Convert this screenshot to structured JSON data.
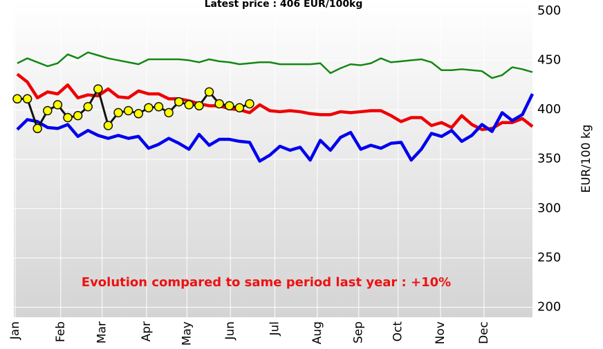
{
  "chart_data": {
    "type": "line",
    "title": "Latest price : 406 EUR/100kg",
    "annotation": "Evolution compared to same period last year : +10%",
    "y_label": "EUR/100 kg",
    "x": [
      1,
      2,
      3,
      4,
      5,
      6,
      7,
      8,
      9,
      10,
      11,
      12,
      13,
      14,
      15,
      16,
      17,
      18,
      19,
      20,
      21,
      22,
      23,
      24,
      25,
      26,
      27,
      28,
      29,
      30,
      31,
      32,
      33,
      34,
      35,
      36,
      37,
      38,
      39,
      40,
      41,
      42,
      43,
      44,
      45,
      46,
      47,
      48,
      49,
      50,
      51,
      52
    ],
    "xlim": [
      0.66,
      52
    ],
    "xticks": [
      {
        "value": 0.8,
        "label": "Jan"
      },
      {
        "value": 5.3,
        "label": "Feb"
      },
      {
        "value": 9.4,
        "label": "Mar"
      },
      {
        "value": 13.8,
        "label": "Apr"
      },
      {
        "value": 17.8,
        "label": "May"
      },
      {
        "value": 22.1,
        "label": "Jun"
      },
      {
        "value": 26.5,
        "label": "Jul"
      },
      {
        "value": 30.7,
        "label": "Aug"
      },
      {
        "value": 34.8,
        "label": "Sep"
      },
      {
        "value": 38.7,
        "label": "Oct"
      },
      {
        "value": 42.9,
        "label": "Nov"
      },
      {
        "value": 47.2,
        "label": "Dec"
      }
    ],
    "ylim": [
      190,
      511
    ],
    "yticks": [
      200,
      250,
      300,
      350,
      400,
      450,
      500
    ],
    "grid": true,
    "series": [
      {
        "color": "#118811",
        "width": 2.5,
        "markers": false,
        "values": [
          447,
          452,
          448,
          444,
          447,
          456,
          452,
          458,
          455,
          452,
          450,
          448,
          446,
          451,
          451,
          451,
          451,
          450,
          448,
          451,
          449,
          448,
          446,
          447,
          448,
          448,
          446,
          446,
          446,
          446,
          447,
          437,
          442,
          446,
          445,
          447,
          452,
          448,
          449,
          450,
          451,
          448,
          440,
          440,
          441,
          440,
          439,
          432,
          435,
          443,
          441,
          438
        ]
      },
      {
        "color": "#ee0000",
        "width": 4.5,
        "markers": false,
        "values": [
          436,
          428,
          412,
          418,
          416,
          425,
          412,
          415,
          414,
          421,
          413,
          412,
          419,
          416,
          416,
          411,
          411,
          409,
          406,
          404,
          404,
          401,
          400,
          397,
          405,
          399,
          398,
          399,
          398,
          396,
          395,
          395,
          398,
          397,
          398,
          399,
          399,
          394,
          388,
          392,
          392,
          384,
          387,
          382,
          394,
          385,
          380,
          381,
          387,
          387,
          391,
          383
        ]
      },
      {
        "color": "#0000ee",
        "width": 4.5,
        "markers": false,
        "values": [
          380,
          390,
          388,
          382,
          381,
          385,
          373,
          379,
          374,
          371,
          374,
          371,
          373,
          361,
          365,
          371,
          366,
          360,
          375,
          364,
          370,
          370,
          368,
          367,
          348,
          354,
          363,
          359,
          362,
          349,
          369,
          359,
          372,
          377,
          360,
          364,
          361,
          366,
          367,
          349,
          360,
          376,
          373,
          379,
          368,
          374,
          385,
          378,
          397,
          389,
          395,
          416
        ]
      },
      {
        "color": "#111111",
        "width": 3,
        "markers": true,
        "values": [
          411,
          411,
          381,
          399,
          405,
          392,
          394,
          403,
          421,
          384,
          397,
          399,
          396,
          402,
          403,
          397,
          408,
          405,
          404,
          418,
          406,
          404,
          402,
          406,
          null,
          null,
          null,
          null,
          null,
          null,
          null,
          null,
          null,
          null,
          null,
          null,
          null,
          null,
          null,
          null,
          null,
          null,
          null,
          null,
          null,
          null,
          null,
          null,
          null,
          null,
          null,
          null
        ]
      }
    ]
  }
}
